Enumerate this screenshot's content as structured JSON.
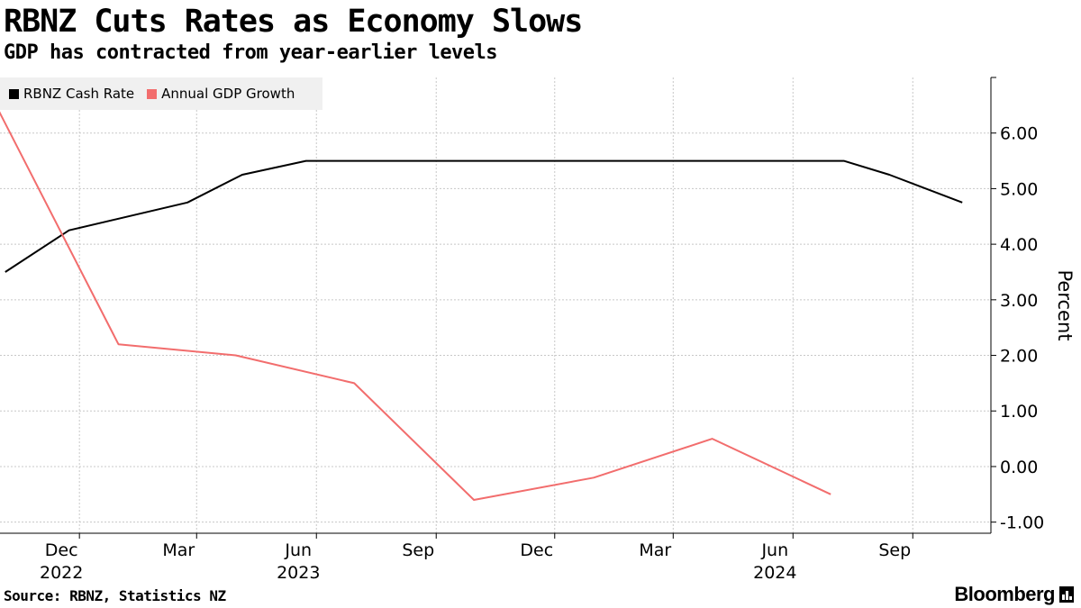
{
  "header": {
    "title": "RBNZ Cuts Rates as Economy Slows",
    "subtitle": "GDP has contracted from year-earlier levels"
  },
  "footer": {
    "source": "Source: RBNZ, Statistics NZ",
    "brand": "Bloomberg"
  },
  "colors": {
    "cash_rate": "#000000",
    "gdp_growth": "#f26d6d",
    "grid": "#c8c8c8"
  },
  "chart_data": {
    "type": "line",
    "title": "RBNZ Cuts Rates as Economy Slows",
    "subtitle": "GDP has contracted from year-earlier levels",
    "ylabel": "Percent",
    "ylim": [
      -1.2,
      7
    ],
    "y_ticks": [
      6,
      5,
      4,
      3,
      2,
      1,
      0,
      -1
    ],
    "y_tick_labels": [
      "6.00",
      "5.00",
      "4.00",
      "3.00",
      "2.00",
      "1.00",
      "0.00",
      "-1.00"
    ],
    "x_range": [
      "2022-10-01",
      "2024-10-31"
    ],
    "x_ticks": [
      {
        "date": "2022-12-01",
        "label": "Dec"
      },
      {
        "date": "2023-03-01",
        "label": "Mar"
      },
      {
        "date": "2023-06-01",
        "label": "Jun"
      },
      {
        "date": "2023-09-01",
        "label": "Sep"
      },
      {
        "date": "2023-12-01",
        "label": "Dec"
      },
      {
        "date": "2024-03-01",
        "label": "Mar"
      },
      {
        "date": "2024-06-01",
        "label": "Jun"
      },
      {
        "date": "2024-09-01",
        "label": "Sep"
      }
    ],
    "year_labels": [
      {
        "date": "2022-12-01",
        "label": "2022"
      },
      {
        "date": "2023-06-01",
        "label": "2023"
      },
      {
        "date": "2024-06-01",
        "label": "2024"
      }
    ],
    "grid": true,
    "legend_position": "top-left",
    "series": [
      {
        "name": "RBNZ Cash Rate",
        "color": "#000000",
        "points": [
          {
            "x": "2022-10-05",
            "y": 3.5
          },
          {
            "x": "2022-11-23",
            "y": 4.25
          },
          {
            "x": "2023-02-22",
            "y": 4.75
          },
          {
            "x": "2023-04-05",
            "y": 5.25
          },
          {
            "x": "2023-05-24",
            "y": 5.5
          },
          {
            "x": "2024-07-10",
            "y": 5.5
          },
          {
            "x": "2024-08-14",
            "y": 5.25
          },
          {
            "x": "2024-10-09",
            "y": 4.75
          }
        ]
      },
      {
        "name": "Annual GDP Growth",
        "color": "#f26d6d",
        "points": [
          {
            "x": "2022-09-30",
            "y": 6.4
          },
          {
            "x": "2022-12-31",
            "y": 2.2
          },
          {
            "x": "2023-03-31",
            "y": 2.0
          },
          {
            "x": "2023-06-30",
            "y": 1.5
          },
          {
            "x": "2023-09-30",
            "y": -0.6
          },
          {
            "x": "2023-12-31",
            "y": -0.2
          },
          {
            "x": "2024-03-31",
            "y": 0.5
          },
          {
            "x": "2024-06-30",
            "y": -0.5
          }
        ]
      }
    ]
  }
}
